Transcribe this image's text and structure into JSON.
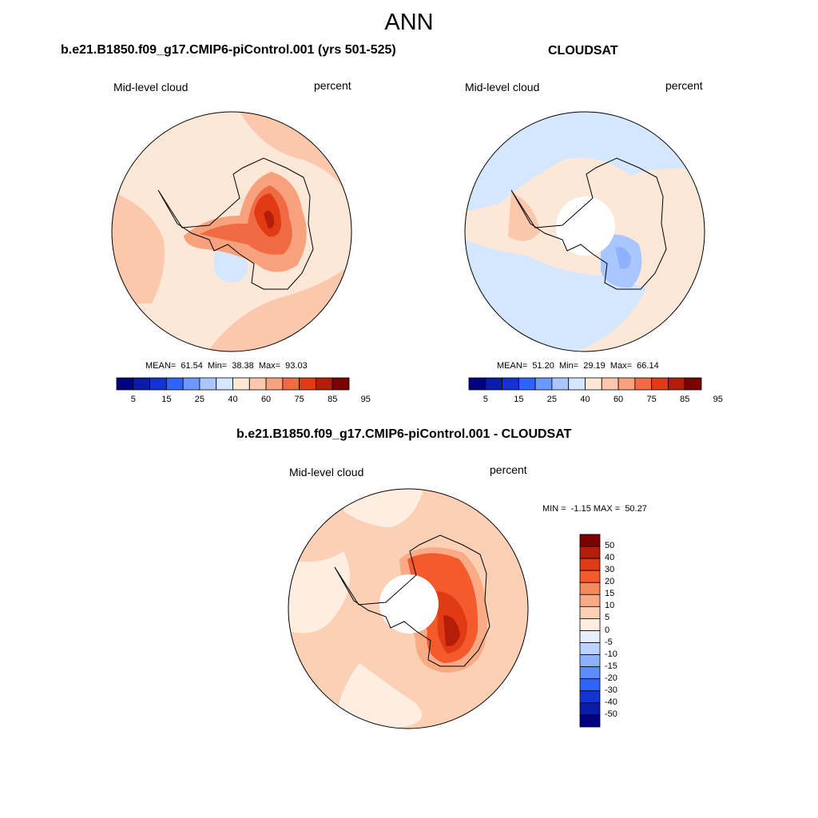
{
  "main_title": "ANN",
  "panels": [
    {
      "title": "b.e21.B1850.f09_g17.CMIP6-piControl.001 (yrs 501-525)",
      "left_label": "Mid-level cloud",
      "right_label": "percent",
      "stats": "MEAN=  61.54  Min=  38.38  Max=  93.03",
      "colorbar": {
        "labels": [
          "5",
          "15",
          "25",
          "40",
          "60",
          "75",
          "85",
          "95"
        ],
        "colors": [
          "#000080",
          "#0a1ca8",
          "#1433d3",
          "#2f63ff",
          "#6a98ff",
          "#a9c6ff",
          "#d5e6ff",
          "#fde8d8",
          "#fbc8ae",
          "#f7a27c",
          "#f06a44",
          "#e03b15",
          "#b41e08",
          "#7d0000"
        ]
      }
    },
    {
      "title": "CLOUDSAT",
      "left_label": "Mid-level cloud",
      "right_label": "percent",
      "stats": "MEAN=  51.20  Min=  29.19  Max=  66.14",
      "colorbar": {
        "labels": [
          "5",
          "15",
          "25",
          "40",
          "60",
          "75",
          "85",
          "95"
        ],
        "colors": [
          "#000080",
          "#0a1ca8",
          "#1433d3",
          "#2f63ff",
          "#6a98ff",
          "#a9c6ff",
          "#d5e6ff",
          "#fde8d8",
          "#fbc8ae",
          "#f7a27c",
          "#f06a44",
          "#e03b15",
          "#b41e08",
          "#7d0000"
        ]
      }
    },
    {
      "title": "b.e21.B1850.f09_g17.CMIP6-piControl.001 - CLOUDSAT",
      "left_label": "Mid-level cloud",
      "right_label": "percent",
      "stats": "MIN =  -1.15 MAX =  50.27",
      "colorbar": {
        "labels": [
          "50",
          "40",
          "30",
          "20",
          "15",
          "10",
          "5",
          "0",
          "-5",
          "-10",
          "-15",
          "-20",
          "-30",
          "-40",
          "-50"
        ],
        "colors": [
          "#7d0000",
          "#b41e08",
          "#e03b15",
          "#f45a2c",
          "#f7885a",
          "#f9ab85",
          "#fcd0b5",
          "#feeee2",
          "#e6eefc",
          "#bcd2ff",
          "#8eb2ff",
          "#5d8cff",
          "#2f63ff",
          "#1433d3",
          "#0a1ca8",
          "#000080"
        ]
      }
    }
  ]
}
